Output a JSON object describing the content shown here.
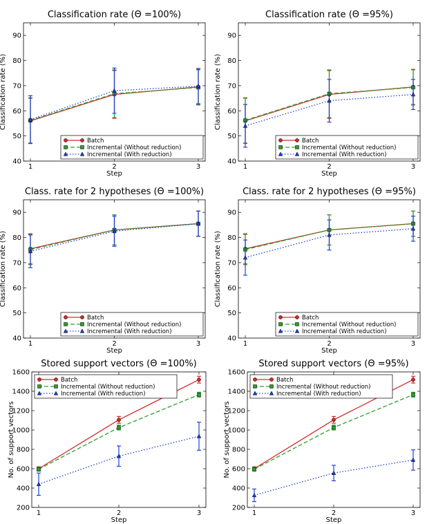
{
  "chart_data": [
    {
      "type": "line",
      "title": "Classification rate (Θ =100%)",
      "xlabel": "Step",
      "ylabel": "Classification rate (%)",
      "x": [
        1,
        2,
        3
      ],
      "xticks": [
        "1",
        "2",
        "3"
      ],
      "ylim": [
        40,
        95
      ],
      "yticks": [
        40,
        50,
        60,
        70,
        80,
        90
      ],
      "legend": "lower-right",
      "grid": false,
      "series": [
        {
          "name": "Batch",
          "values": [
            56,
            66.5,
            69.5
          ],
          "err": [
            9,
            9.5,
            7
          ],
          "color": "#d62728",
          "style": "solid",
          "marker": "circle"
        },
        {
          "name": "Incremental (Without reduction)",
          "values": [
            56.2,
            66.8,
            69.3
          ],
          "err": [
            9,
            9.5,
            7
          ],
          "color": "#2ca02c",
          "style": "dashed",
          "marker": "square"
        },
        {
          "name": "Incremental (With reduction)",
          "values": [
            56.5,
            68,
            69.8
          ],
          "err": [
            9.5,
            9,
            7
          ],
          "color": "#1f3fd4",
          "style": "dotted",
          "marker": "triangle"
        }
      ]
    },
    {
      "type": "line",
      "title": "Classification rate (Θ =95%)",
      "xlabel": "Step",
      "ylabel": "Classification rate (%)",
      "x": [
        1,
        2,
        3
      ],
      "xticks": [
        "1",
        "2",
        "3"
      ],
      "ylim": [
        40,
        95
      ],
      "yticks": [
        40,
        50,
        60,
        70,
        80,
        90
      ],
      "legend": "lower-right",
      "grid": false,
      "series": [
        {
          "name": "Batch",
          "values": [
            56,
            66.5,
            69.5
          ],
          "err": [
            9,
            9.5,
            7
          ],
          "color": "#d62728",
          "style": "solid",
          "marker": "circle"
        },
        {
          "name": "Incremental (Without reduction)",
          "values": [
            56.2,
            66.8,
            69.3
          ],
          "err": [
            9,
            9.5,
            7
          ],
          "color": "#2ca02c",
          "style": "dashed",
          "marker": "square"
        },
        {
          "name": "Incremental (With reduction)",
          "values": [
            54,
            64,
            66.5
          ],
          "err": [
            8.5,
            8.5,
            6
          ],
          "color": "#1f3fd4",
          "style": "dotted",
          "marker": "triangle"
        }
      ]
    },
    {
      "type": "line",
      "title": "Class. rate for 2 hypotheses (Θ =100%)",
      "xlabel": "Step",
      "ylabel": "Classification rate (%)",
      "x": [
        1,
        2,
        3
      ],
      "xticks": [
        "1",
        "2",
        "3"
      ],
      "ylim": [
        40,
        95
      ],
      "yticks": [
        40,
        50,
        60,
        70,
        80,
        90
      ],
      "legend": "lower-right",
      "grid": false,
      "series": [
        {
          "name": "Batch",
          "values": [
            75.5,
            83,
            85.5
          ],
          "err": [
            6,
            6,
            5
          ],
          "color": "#d62728",
          "style": "solid",
          "marker": "circle"
        },
        {
          "name": "Incremental (Without reduction)",
          "values": [
            75.2,
            83,
            85.5
          ],
          "err": [
            6,
            6,
            5
          ],
          "color": "#2ca02c",
          "style": "dashed",
          "marker": "square"
        },
        {
          "name": "Incremental (With reduction)",
          "values": [
            74.5,
            82.5,
            85.5
          ],
          "err": [
            6.5,
            6,
            5
          ],
          "color": "#1f3fd4",
          "style": "dotted",
          "marker": "triangle"
        }
      ]
    },
    {
      "type": "line",
      "title": "Class. rate for 2 hypotheses (Θ =95%)",
      "xlabel": "Step",
      "ylabel": "Classification rate (%)",
      "x": [
        1,
        2,
        3
      ],
      "xticks": [
        "1",
        "2",
        "3"
      ],
      "ylim": [
        40,
        95
      ],
      "yticks": [
        40,
        50,
        60,
        70,
        80,
        90
      ],
      "legend": "lower-right",
      "grid": false,
      "series": [
        {
          "name": "Batch",
          "values": [
            75.5,
            83,
            85.5
          ],
          "err": [
            6,
            6,
            5
          ],
          "color": "#d62728",
          "style": "solid",
          "marker": "circle"
        },
        {
          "name": "Incremental (Without reduction)",
          "values": [
            75.2,
            83,
            85.5
          ],
          "err": [
            6,
            6,
            5
          ],
          "color": "#2ca02c",
          "style": "dashed",
          "marker": "square"
        },
        {
          "name": "Incremental (With reduction)",
          "values": [
            72,
            81,
            83.5
          ],
          "err": [
            7,
            6,
            5
          ],
          "color": "#1f3fd4",
          "style": "dotted",
          "marker": "triangle"
        }
      ]
    },
    {
      "type": "line",
      "title": "Stored support vectors (Θ =100%)",
      "xlabel": "Step",
      "ylabel": "No. of support vectors",
      "x": [
        1,
        2,
        3
      ],
      "xticks": [
        "1",
        "2",
        "3"
      ],
      "ylim": [
        200,
        1600
      ],
      "yticks": [
        200,
        400,
        600,
        800,
        1000,
        1200,
        1400,
        1600
      ],
      "legend": "upper-left",
      "grid": false,
      "series": [
        {
          "name": "Batch",
          "values": [
            600,
            1105,
            1520
          ],
          "err": [
            20,
            35,
            35
          ],
          "color": "#d62728",
          "style": "solid",
          "marker": "circle"
        },
        {
          "name": "Incremental (Without reduction)",
          "values": [
            595,
            1025,
            1365
          ],
          "err": [
            20,
            25,
            25
          ],
          "color": "#2ca02c",
          "style": "dashed",
          "marker": "square"
        },
        {
          "name": "Incremental (With reduction)",
          "values": [
            440,
            730,
            935
          ],
          "err": [
            115,
            105,
            145
          ],
          "color": "#1f3fd4",
          "style": "dotted",
          "marker": "triangle"
        }
      ]
    },
    {
      "type": "line",
      "title": "Stored support vectors (Θ =95%)",
      "xlabel": "Step",
      "ylabel": "No. of support vectors",
      "x": [
        1,
        2,
        3
      ],
      "xticks": [
        "1",
        "2",
        "3"
      ],
      "ylim": [
        200,
        1600
      ],
      "yticks": [
        200,
        400,
        600,
        800,
        1000,
        1200,
        1400,
        1600
      ],
      "legend": "upper-left",
      "grid": false,
      "series": [
        {
          "name": "Batch",
          "values": [
            600,
            1105,
            1520
          ],
          "err": [
            20,
            35,
            35
          ],
          "color": "#d62728",
          "style": "solid",
          "marker": "circle"
        },
        {
          "name": "Incremental (Without reduction)",
          "values": [
            595,
            1025,
            1365
          ],
          "err": [
            20,
            25,
            25
          ],
          "color": "#2ca02c",
          "style": "dashed",
          "marker": "square"
        },
        {
          "name": "Incremental (With reduction)",
          "values": [
            325,
            555,
            690
          ],
          "err": [
            65,
            80,
            105
          ],
          "color": "#1f3fd4",
          "style": "dotted",
          "marker": "triangle"
        }
      ]
    }
  ]
}
